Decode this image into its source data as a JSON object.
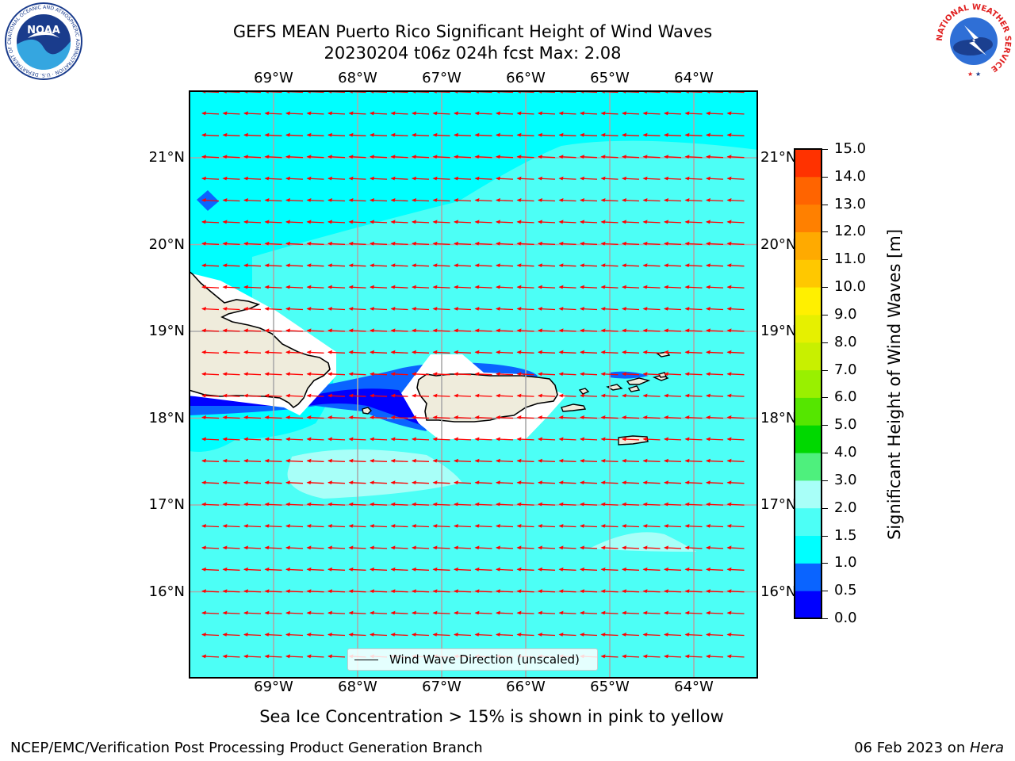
{
  "title": {
    "line1": "GEFS MEAN Puerto Rico Significant Height of Wind Waves",
    "line2": "20230204 t06z 024h fcst   Max: 2.08"
  },
  "map": {
    "lon_ticks": [
      "69°W",
      "68°W",
      "67°W",
      "66°W",
      "65°W",
      "64°W"
    ],
    "lat_ticks": [
      "21°N",
      "20°N",
      "19°N",
      "18°N",
      "17°N",
      "16°N"
    ],
    "land_color": "#efecdc",
    "ocean_base_color": "#00ffff",
    "vector_color": "#ff0000",
    "grid": true,
    "legend_label": "Wind Wave Direction (unscaled)",
    "wind_wave_direction": "toward west"
  },
  "colorbar": {
    "label": "Significant Height of Wind Waves [m]",
    "tick_labels": [
      "15.0",
      "14.0",
      "13.0",
      "12.0",
      "11.0",
      "10.0",
      "9.0",
      "8.0",
      "7.0",
      "6.0",
      "5.0",
      "4.0",
      "3.0",
      "2.0",
      "1.5",
      "1.0",
      "0.5",
      "0.0"
    ],
    "colors_bottom_to_top": [
      "#0000ff",
      "#0a64ff",
      "#00ffff",
      "#4cfff6",
      "#a8fff8",
      "#4ef07d",
      "#00d800",
      "#55e600",
      "#99f000",
      "#c8f000",
      "#e6f000",
      "#fff000",
      "#ffc800",
      "#ffaa00",
      "#ff8000",
      "#ff6400",
      "#ff3200",
      "#ff0000"
    ]
  },
  "caption": "Sea Ice Concentration > 15% is shown in pink to yellow",
  "footer": {
    "left": "NCEP/EMC/Verification Post Processing Product Generation Branch",
    "date": "06 Feb 2023 on ",
    "host": "Hera"
  },
  "logos": {
    "noaa": "NOAA",
    "noaa_ring": "NATIONAL OCEANIC AND ATMOSPHERIC ADMINISTRATION · U.S. DEPARTMENT OF COMMERCE",
    "nws_ring": "NATIONAL WEATHER SERVICE"
  }
}
